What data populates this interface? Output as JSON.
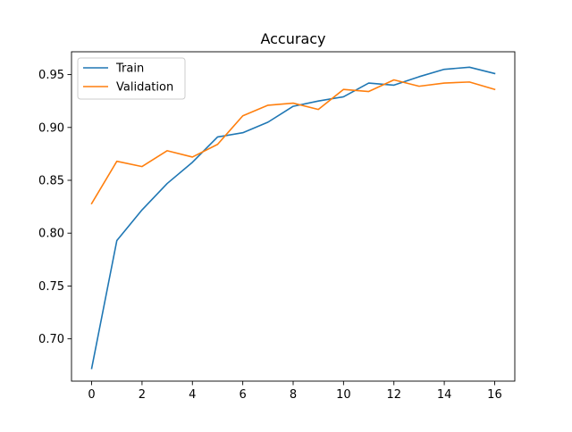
{
  "chart_data": {
    "type": "line",
    "title": "Accuracy",
    "xlabel": "",
    "ylabel": "",
    "x": [
      0,
      1,
      2,
      3,
      4,
      5,
      6,
      7,
      8,
      9,
      10,
      11,
      12,
      13,
      14,
      15,
      16
    ],
    "xlim": [
      -0.8,
      16.8
    ],
    "ylim": [
      0.66,
      0.9716
    ],
    "x_ticks": [
      0,
      2,
      4,
      6,
      8,
      10,
      12,
      14,
      16
    ],
    "x_tick_labels": [
      "0",
      "2",
      "4",
      "6",
      "8",
      "10",
      "12",
      "14",
      "16"
    ],
    "y_ticks": [
      0.7,
      0.75,
      0.8,
      0.85,
      0.9,
      0.95
    ],
    "y_tick_labels": [
      "0.70",
      "0.75",
      "0.80",
      "0.85",
      "0.90",
      "0.95"
    ],
    "grid": false,
    "legend_position": "upper-left",
    "series": [
      {
        "name": "Train",
        "color": "#1f77b4",
        "values": [
          0.672,
          0.793,
          0.822,
          0.847,
          0.867,
          0.891,
          0.895,
          0.905,
          0.92,
          0.925,
          0.929,
          0.942,
          0.94,
          0.948,
          0.955,
          0.957,
          0.951
        ]
      },
      {
        "name": "Validation",
        "color": "#ff7f0e",
        "values": [
          0.828,
          0.868,
          0.863,
          0.878,
          0.872,
          0.884,
          0.911,
          0.921,
          0.923,
          0.917,
          0.936,
          0.934,
          0.945,
          0.939,
          0.942,
          0.943,
          0.936
        ]
      }
    ]
  }
}
